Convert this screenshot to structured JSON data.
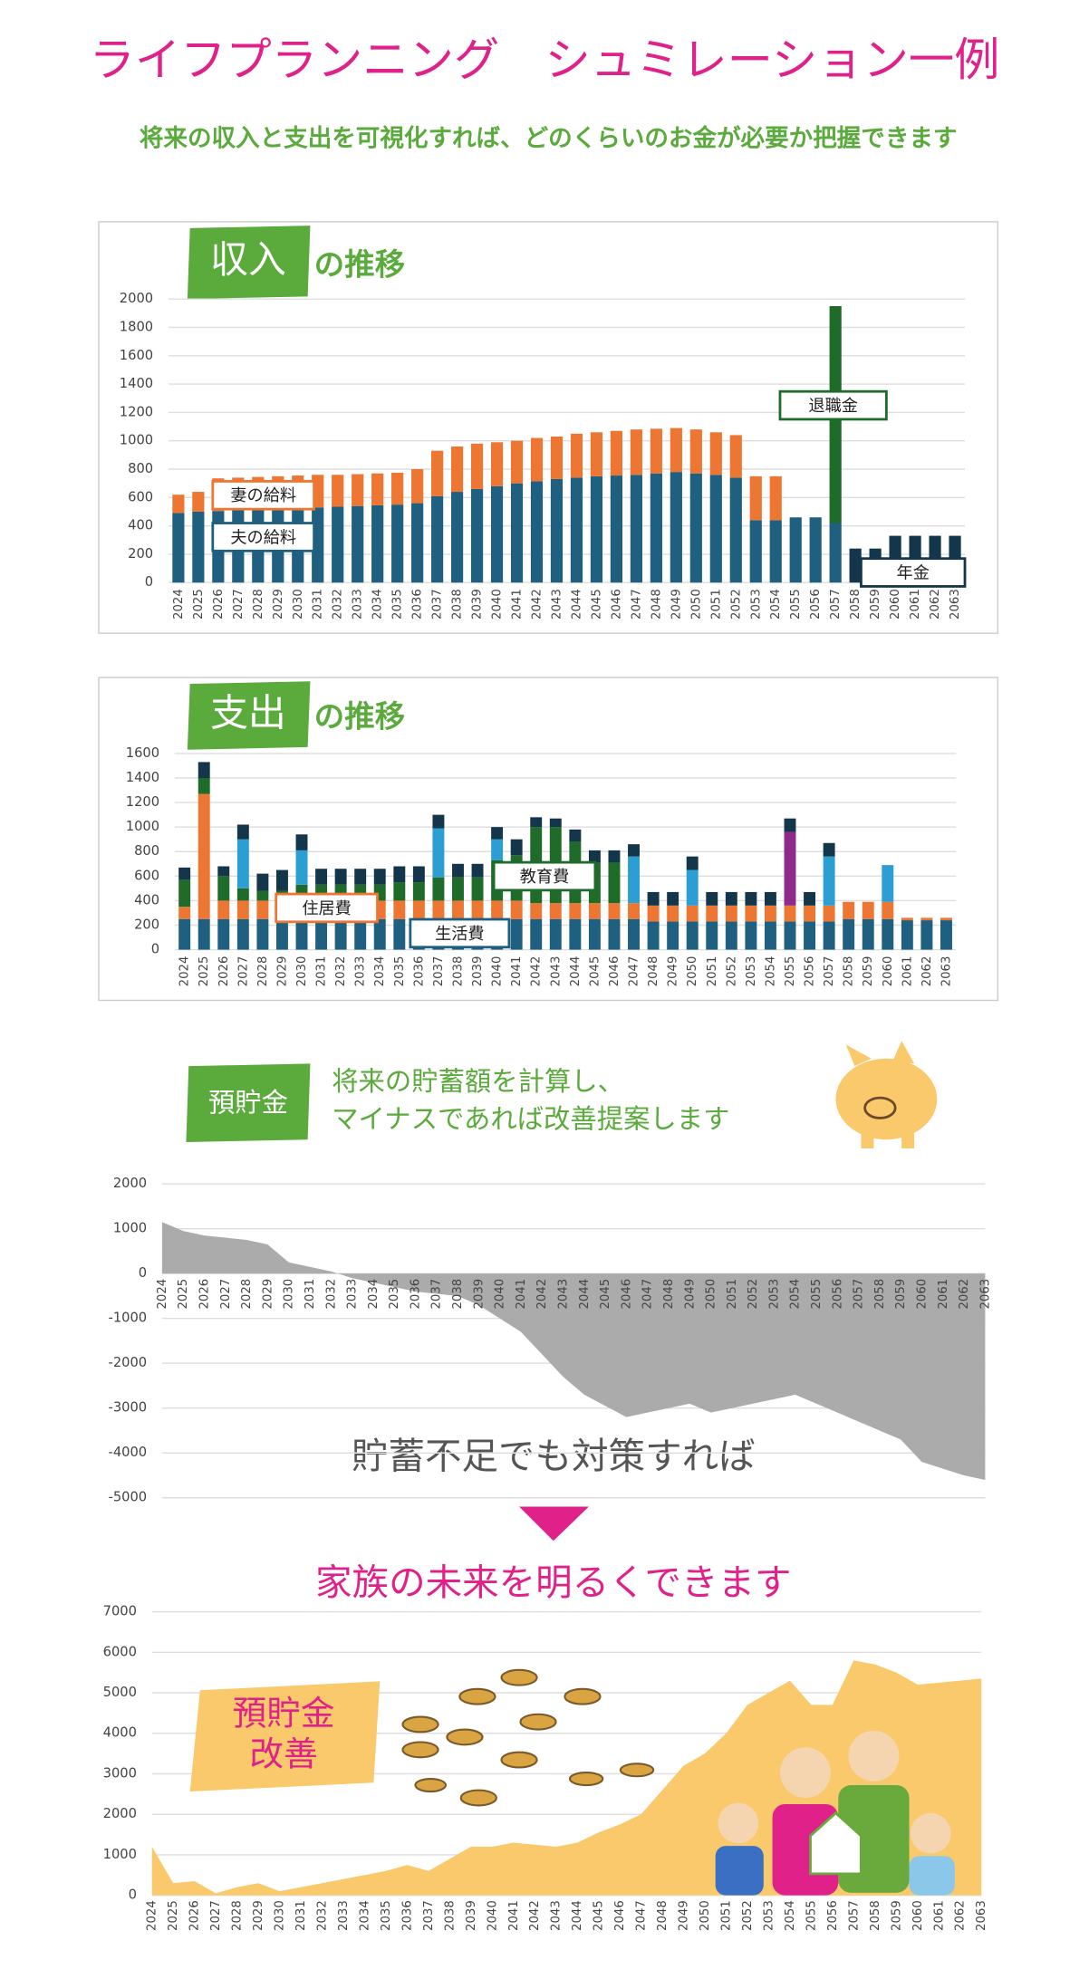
{
  "header": {
    "title": "ライフプランニング　シュミレーション一例",
    "subtitle": "将来の収入と支出を可視化すれば、どのくらいのお金が必要か把握できます"
  },
  "messages": [
    "貯蓄不足でも対策すれば",
    "家族の未来を明るくできます"
  ],
  "chart_data": [
    {
      "type": "stacked-bar",
      "tag": "収入",
      "title": "の推移",
      "categories": [
        "2024",
        "2025",
        "2026",
        "2027",
        "2028",
        "2029",
        "2030",
        "2031",
        "2032",
        "2033",
        "2034",
        "2035",
        "2036",
        "2037",
        "2038",
        "2039",
        "2040",
        "2041",
        "2042",
        "2043",
        "2044",
        "2045",
        "2046",
        "2047",
        "2048",
        "2049",
        "2050",
        "2051",
        "2052",
        "2053",
        "2054",
        "2055",
        "2056",
        "2057",
        "2058",
        "2059",
        "2060",
        "2061",
        "2062",
        "2063"
      ],
      "series": [
        {
          "name": "夫の給料",
          "color": "#1f5f80",
          "values": [
            490,
            500,
            505,
            510,
            515,
            520,
            525,
            530,
            535,
            540,
            545,
            550,
            560,
            610,
            640,
            660,
            680,
            700,
            715,
            730,
            740,
            750,
            755,
            760,
            770,
            780,
            770,
            760,
            740,
            440,
            440,
            460,
            460,
            420,
            0,
            0,
            0,
            0,
            0,
            0
          ]
        },
        {
          "name": "妻の給料",
          "color": "#ed7633",
          "values": [
            130,
            140,
            230,
            230,
            230,
            230,
            230,
            230,
            225,
            225,
            225,
            225,
            240,
            320,
            320,
            320,
            310,
            300,
            305,
            300,
            310,
            310,
            315,
            320,
            315,
            310,
            310,
            300,
            300,
            310,
            310,
            0,
            0,
            0,
            0,
            0,
            100,
            100,
            100,
            100
          ]
        },
        {
          "name": "退職金",
          "color": "#1f6b2a",
          "values": [
            0,
            0,
            0,
            0,
            0,
            0,
            0,
            0,
            0,
            0,
            0,
            0,
            0,
            0,
            0,
            0,
            0,
            0,
            0,
            0,
            0,
            0,
            0,
            0,
            0,
            0,
            0,
            0,
            0,
            0,
            0,
            0,
            0,
            1530,
            0,
            0,
            0,
            0,
            0,
            0
          ]
        },
        {
          "name": "年金",
          "color": "#14364a",
          "values": [
            0,
            0,
            0,
            0,
            0,
            0,
            0,
            0,
            0,
            0,
            0,
            0,
            0,
            0,
            0,
            0,
            0,
            0,
            0,
            0,
            0,
            0,
            0,
            0,
            0,
            0,
            0,
            0,
            0,
            0,
            0,
            0,
            0,
            0,
            240,
            240,
            230,
            230,
            230,
            230
          ]
        }
      ],
      "ylim": [
        0,
        2000
      ],
      "yticks": [
        0,
        200,
        400,
        600,
        800,
        1000,
        1200,
        1400,
        1600,
        1800,
        2000
      ],
      "grid": true
    },
    {
      "type": "stacked-bar",
      "tag": "支出",
      "title": "の推移",
      "categories": [
        "2024",
        "2025",
        "2026",
        "2027",
        "2028",
        "2029",
        "2030",
        "2031",
        "2032",
        "2033",
        "2034",
        "2035",
        "2036",
        "2037",
        "2038",
        "2039",
        "2040",
        "2041",
        "2042",
        "2043",
        "2044",
        "2045",
        "2046",
        "2047",
        "2048",
        "2049",
        "2050",
        "2051",
        "2052",
        "2053",
        "2054",
        "2055",
        "2056",
        "2057",
        "2058",
        "2059",
        "2060",
        "2061",
        "2062",
        "2063"
      ],
      "series": [
        {
          "name": "生活費",
          "color": "#1f5f80",
          "values": [
            250,
            250,
            250,
            250,
            250,
            250,
            250,
            250,
            250,
            250,
            250,
            250,
            250,
            250,
            250,
            250,
            250,
            250,
            250,
            250,
            250,
            250,
            250,
            250,
            230,
            230,
            230,
            230,
            230,
            230,
            230,
            230,
            230,
            230,
            250,
            250,
            250,
            240,
            240,
            240
          ]
        },
        {
          "name": "住居費",
          "color": "#ed7633",
          "values": [
            100,
            1020,
            150,
            150,
            150,
            150,
            150,
            150,
            150,
            150,
            150,
            150,
            150,
            150,
            150,
            150,
            150,
            150,
            130,
            130,
            130,
            130,
            130,
            130,
            130,
            130,
            130,
            130,
            130,
            130,
            130,
            130,
            130,
            130,
            140,
            140,
            140,
            20,
            20,
            20
          ]
        },
        {
          "name": "教育費",
          "color": "#1f6b2a",
          "values": [
            220,
            130,
            200,
            100,
            80,
            80,
            130,
            130,
            130,
            130,
            130,
            150,
            150,
            190,
            190,
            190,
            330,
            370,
            620,
            620,
            500,
            330,
            330,
            0,
            0,
            0,
            0,
            0,
            0,
            0,
            0,
            0,
            0,
            0,
            0,
            0,
            0,
            0,
            0,
            0
          ]
        },
        {
          "color": "#2b9fd4",
          "values": [
            0,
            0,
            0,
            400,
            0,
            0,
            280,
            0,
            0,
            0,
            0,
            0,
            0,
            400,
            0,
            0,
            170,
            0,
            0,
            0,
            0,
            0,
            0,
            380,
            0,
            0,
            290,
            0,
            0,
            0,
            0,
            0,
            0,
            400,
            0,
            0,
            300,
            0,
            0,
            0
          ]
        },
        {
          "color": "#8e2a8a",
          "values": [
            0,
            0,
            0,
            0,
            0,
            0,
            0,
            0,
            0,
            0,
            0,
            0,
            0,
            0,
            0,
            0,
            0,
            0,
            0,
            0,
            0,
            0,
            0,
            0,
            0,
            0,
            0,
            0,
            0,
            0,
            0,
            600,
            0,
            0,
            0,
            0,
            0,
            0,
            0,
            0
          ]
        },
        {
          "color": "#14364a",
          "values": [
            100,
            130,
            80,
            120,
            140,
            170,
            130,
            130,
            130,
            130,
            130,
            130,
            130,
            110,
            110,
            110,
            100,
            130,
            80,
            70,
            100,
            100,
            100,
            100,
            110,
            110,
            110,
            110,
            110,
            110,
            110,
            110,
            110,
            110,
            0,
            0,
            0,
            0,
            0,
            0
          ]
        }
      ],
      "ylim": [
        0,
        1600
      ],
      "yticks": [
        0,
        200,
        400,
        600,
        800,
        1000,
        1200,
        1400,
        1600
      ],
      "grid": true
    },
    {
      "type": "area",
      "tag": "預貯金",
      "note": [
        "将来の貯蓄額を計算し、",
        "マイナスであれば改善提案します"
      ],
      "color": "#ababab",
      "negative_tick_color": "#e00000",
      "categories": [
        "2024",
        "2025",
        "2026",
        "2027",
        "2028",
        "2029",
        "2030",
        "2031",
        "2032",
        "2033",
        "2034",
        "2035",
        "2036",
        "2037",
        "2038",
        "2039",
        "2040",
        "2041",
        "2042",
        "2043",
        "2044",
        "2045",
        "2046",
        "2047",
        "2048",
        "2049",
        "2050",
        "2051",
        "2052",
        "2053",
        "2054",
        "2055",
        "2056",
        "2057",
        "2058",
        "2059",
        "2060",
        "2061",
        "2062",
        "2063"
      ],
      "values": [
        1150,
        950,
        850,
        800,
        750,
        650,
        250,
        150,
        50,
        -100,
        -200,
        -300,
        -400,
        -450,
        -500,
        -700,
        -1000,
        -1300,
        -1800,
        -2300,
        -2700,
        -2950,
        -3200,
        -3100,
        -3000,
        -2900,
        -3100,
        -3000,
        -2900,
        -2800,
        -2700,
        -2900,
        -3100,
        -3300,
        -3500,
        -3700,
        -4200,
        -4350,
        -4500,
        -4600
      ],
      "ylim": [
        -5000,
        2000
      ],
      "yticks": [
        -5000,
        -4000,
        -3000,
        -2000,
        -1000,
        0,
        1000,
        2000
      ],
      "grid": true
    },
    {
      "type": "area",
      "tag": [
        "預貯金",
        "改善"
      ],
      "color": "#f9c96b",
      "categories": [
        "2024",
        "2025",
        "2026",
        "2027",
        "2028",
        "2029",
        "2030",
        "2031",
        "2032",
        "2033",
        "2034",
        "2035",
        "2036",
        "2037",
        "2038",
        "2039",
        "2040",
        "2041",
        "2042",
        "2043",
        "2044",
        "2045",
        "2046",
        "2047",
        "2048",
        "2049",
        "2050",
        "2051",
        "2052",
        "2053",
        "2054",
        "2055",
        "2056",
        "2057",
        "2058",
        "2059",
        "2060",
        "2061",
        "2062",
        "2063"
      ],
      "values": [
        1200,
        300,
        350,
        50,
        200,
        300,
        100,
        200,
        300,
        400,
        500,
        600,
        750,
        600,
        900,
        1200,
        1200,
        1300,
        1250,
        1200,
        1300,
        1550,
        1750,
        2000,
        2600,
        3200,
        3500,
        4000,
        4700,
        5000,
        5300,
        4700,
        4700,
        5800,
        5700,
        5500,
        5200,
        5250,
        5300,
        5350
      ],
      "ylim": [
        0,
        7000
      ],
      "yticks": [
        0,
        1000,
        2000,
        3000,
        4000,
        5000,
        6000,
        7000
      ],
      "grid": true
    }
  ]
}
